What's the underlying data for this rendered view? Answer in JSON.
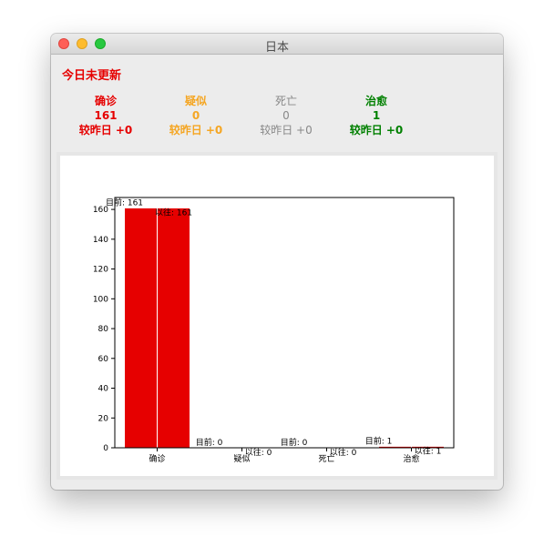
{
  "window": {
    "title": "日本"
  },
  "panel": {
    "update_status": "今日未更新",
    "stats": [
      {
        "label": "确诊",
        "value": "161",
        "delta": "较昨日 +0",
        "color": "#e60000"
      },
      {
        "label": "疑似",
        "value": "0",
        "delta": "较昨日 +0",
        "color": "#f5a623"
      },
      {
        "label": "死亡",
        "value": "0",
        "delta": "较昨日 +0",
        "color": "#888888"
      },
      {
        "label": "治愈",
        "value": "1",
        "delta": "较昨日 +0",
        "color": "#008000"
      }
    ]
  },
  "colors": {
    "update_status": "#e60000",
    "bar_fill": "#e60000"
  },
  "chart_data": {
    "type": "bar",
    "categories": [
      "确诊",
      "疑似",
      "死亡",
      "治愈"
    ],
    "series": [
      {
        "values": [
          161,
          0,
          0,
          1
        ]
      },
      {
        "values": [
          161,
          0,
          0,
          1
        ]
      }
    ],
    "current_labels": [
      "目前: 161",
      "目前: 0",
      "目前: 0",
      "目前: 1"
    ],
    "previous_labels": [
      "以往: 161",
      "以往: 0",
      "以往: 0",
      "以往: 1"
    ],
    "yticks": [
      "0",
      "20",
      "40",
      "60",
      "80",
      "100",
      "120",
      "140",
      "160"
    ],
    "ylim": [
      0,
      168
    ],
    "grid": false
  }
}
